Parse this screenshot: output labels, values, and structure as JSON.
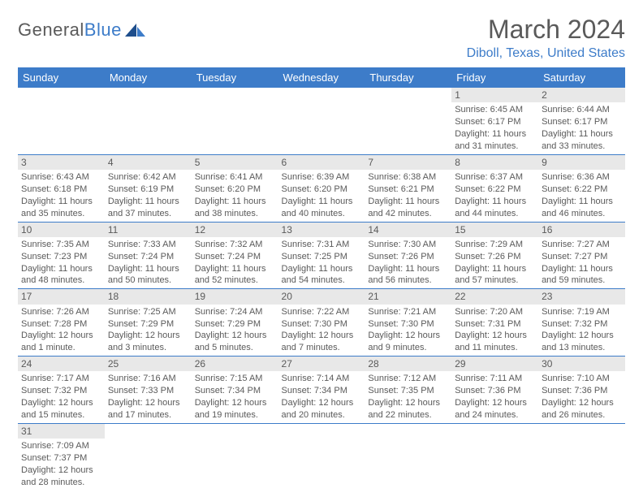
{
  "brand": {
    "part1": "General",
    "part2": "Blue"
  },
  "title": "March 2024",
  "location": "Diboll, Texas, United States",
  "colors": {
    "accent": "#3d7cc9",
    "header_bg": "#3d7cc9",
    "daynum_bg": "#e8e8e8",
    "text": "#5a5a5a",
    "background": "#ffffff"
  },
  "day_headers": [
    "Sunday",
    "Monday",
    "Tuesday",
    "Wednesday",
    "Thursday",
    "Friday",
    "Saturday"
  ],
  "weeks": [
    [
      {
        "n": "",
        "sr": "",
        "ss": "",
        "dl": ""
      },
      {
        "n": "",
        "sr": "",
        "ss": "",
        "dl": ""
      },
      {
        "n": "",
        "sr": "",
        "ss": "",
        "dl": ""
      },
      {
        "n": "",
        "sr": "",
        "ss": "",
        "dl": ""
      },
      {
        "n": "",
        "sr": "",
        "ss": "",
        "dl": ""
      },
      {
        "n": "1",
        "sr": "Sunrise: 6:45 AM",
        "ss": "Sunset: 6:17 PM",
        "dl": "Daylight: 11 hours and 31 minutes."
      },
      {
        "n": "2",
        "sr": "Sunrise: 6:44 AM",
        "ss": "Sunset: 6:17 PM",
        "dl": "Daylight: 11 hours and 33 minutes."
      }
    ],
    [
      {
        "n": "3",
        "sr": "Sunrise: 6:43 AM",
        "ss": "Sunset: 6:18 PM",
        "dl": "Daylight: 11 hours and 35 minutes."
      },
      {
        "n": "4",
        "sr": "Sunrise: 6:42 AM",
        "ss": "Sunset: 6:19 PM",
        "dl": "Daylight: 11 hours and 37 minutes."
      },
      {
        "n": "5",
        "sr": "Sunrise: 6:41 AM",
        "ss": "Sunset: 6:20 PM",
        "dl": "Daylight: 11 hours and 38 minutes."
      },
      {
        "n": "6",
        "sr": "Sunrise: 6:39 AM",
        "ss": "Sunset: 6:20 PM",
        "dl": "Daylight: 11 hours and 40 minutes."
      },
      {
        "n": "7",
        "sr": "Sunrise: 6:38 AM",
        "ss": "Sunset: 6:21 PM",
        "dl": "Daylight: 11 hours and 42 minutes."
      },
      {
        "n": "8",
        "sr": "Sunrise: 6:37 AM",
        "ss": "Sunset: 6:22 PM",
        "dl": "Daylight: 11 hours and 44 minutes."
      },
      {
        "n": "9",
        "sr": "Sunrise: 6:36 AM",
        "ss": "Sunset: 6:22 PM",
        "dl": "Daylight: 11 hours and 46 minutes."
      }
    ],
    [
      {
        "n": "10",
        "sr": "Sunrise: 7:35 AM",
        "ss": "Sunset: 7:23 PM",
        "dl": "Daylight: 11 hours and 48 minutes."
      },
      {
        "n": "11",
        "sr": "Sunrise: 7:33 AM",
        "ss": "Sunset: 7:24 PM",
        "dl": "Daylight: 11 hours and 50 minutes."
      },
      {
        "n": "12",
        "sr": "Sunrise: 7:32 AM",
        "ss": "Sunset: 7:24 PM",
        "dl": "Daylight: 11 hours and 52 minutes."
      },
      {
        "n": "13",
        "sr": "Sunrise: 7:31 AM",
        "ss": "Sunset: 7:25 PM",
        "dl": "Daylight: 11 hours and 54 minutes."
      },
      {
        "n": "14",
        "sr": "Sunrise: 7:30 AM",
        "ss": "Sunset: 7:26 PM",
        "dl": "Daylight: 11 hours and 56 minutes."
      },
      {
        "n": "15",
        "sr": "Sunrise: 7:29 AM",
        "ss": "Sunset: 7:26 PM",
        "dl": "Daylight: 11 hours and 57 minutes."
      },
      {
        "n": "16",
        "sr": "Sunrise: 7:27 AM",
        "ss": "Sunset: 7:27 PM",
        "dl": "Daylight: 11 hours and 59 minutes."
      }
    ],
    [
      {
        "n": "17",
        "sr": "Sunrise: 7:26 AM",
        "ss": "Sunset: 7:28 PM",
        "dl": "Daylight: 12 hours and 1 minute."
      },
      {
        "n": "18",
        "sr": "Sunrise: 7:25 AM",
        "ss": "Sunset: 7:29 PM",
        "dl": "Daylight: 12 hours and 3 minutes."
      },
      {
        "n": "19",
        "sr": "Sunrise: 7:24 AM",
        "ss": "Sunset: 7:29 PM",
        "dl": "Daylight: 12 hours and 5 minutes."
      },
      {
        "n": "20",
        "sr": "Sunrise: 7:22 AM",
        "ss": "Sunset: 7:30 PM",
        "dl": "Daylight: 12 hours and 7 minutes."
      },
      {
        "n": "21",
        "sr": "Sunrise: 7:21 AM",
        "ss": "Sunset: 7:30 PM",
        "dl": "Daylight: 12 hours and 9 minutes."
      },
      {
        "n": "22",
        "sr": "Sunrise: 7:20 AM",
        "ss": "Sunset: 7:31 PM",
        "dl": "Daylight: 12 hours and 11 minutes."
      },
      {
        "n": "23",
        "sr": "Sunrise: 7:19 AM",
        "ss": "Sunset: 7:32 PM",
        "dl": "Daylight: 12 hours and 13 minutes."
      }
    ],
    [
      {
        "n": "24",
        "sr": "Sunrise: 7:17 AM",
        "ss": "Sunset: 7:32 PM",
        "dl": "Daylight: 12 hours and 15 minutes."
      },
      {
        "n": "25",
        "sr": "Sunrise: 7:16 AM",
        "ss": "Sunset: 7:33 PM",
        "dl": "Daylight: 12 hours and 17 minutes."
      },
      {
        "n": "26",
        "sr": "Sunrise: 7:15 AM",
        "ss": "Sunset: 7:34 PM",
        "dl": "Daylight: 12 hours and 19 minutes."
      },
      {
        "n": "27",
        "sr": "Sunrise: 7:14 AM",
        "ss": "Sunset: 7:34 PM",
        "dl": "Daylight: 12 hours and 20 minutes."
      },
      {
        "n": "28",
        "sr": "Sunrise: 7:12 AM",
        "ss": "Sunset: 7:35 PM",
        "dl": "Daylight: 12 hours and 22 minutes."
      },
      {
        "n": "29",
        "sr": "Sunrise: 7:11 AM",
        "ss": "Sunset: 7:36 PM",
        "dl": "Daylight: 12 hours and 24 minutes."
      },
      {
        "n": "30",
        "sr": "Sunrise: 7:10 AM",
        "ss": "Sunset: 7:36 PM",
        "dl": "Daylight: 12 hours and 26 minutes."
      }
    ],
    [
      {
        "n": "31",
        "sr": "Sunrise: 7:09 AM",
        "ss": "Sunset: 7:37 PM",
        "dl": "Daylight: 12 hours and 28 minutes."
      },
      {
        "n": "",
        "sr": "",
        "ss": "",
        "dl": ""
      },
      {
        "n": "",
        "sr": "",
        "ss": "",
        "dl": ""
      },
      {
        "n": "",
        "sr": "",
        "ss": "",
        "dl": ""
      },
      {
        "n": "",
        "sr": "",
        "ss": "",
        "dl": ""
      },
      {
        "n": "",
        "sr": "",
        "ss": "",
        "dl": ""
      },
      {
        "n": "",
        "sr": "",
        "ss": "",
        "dl": ""
      }
    ]
  ]
}
